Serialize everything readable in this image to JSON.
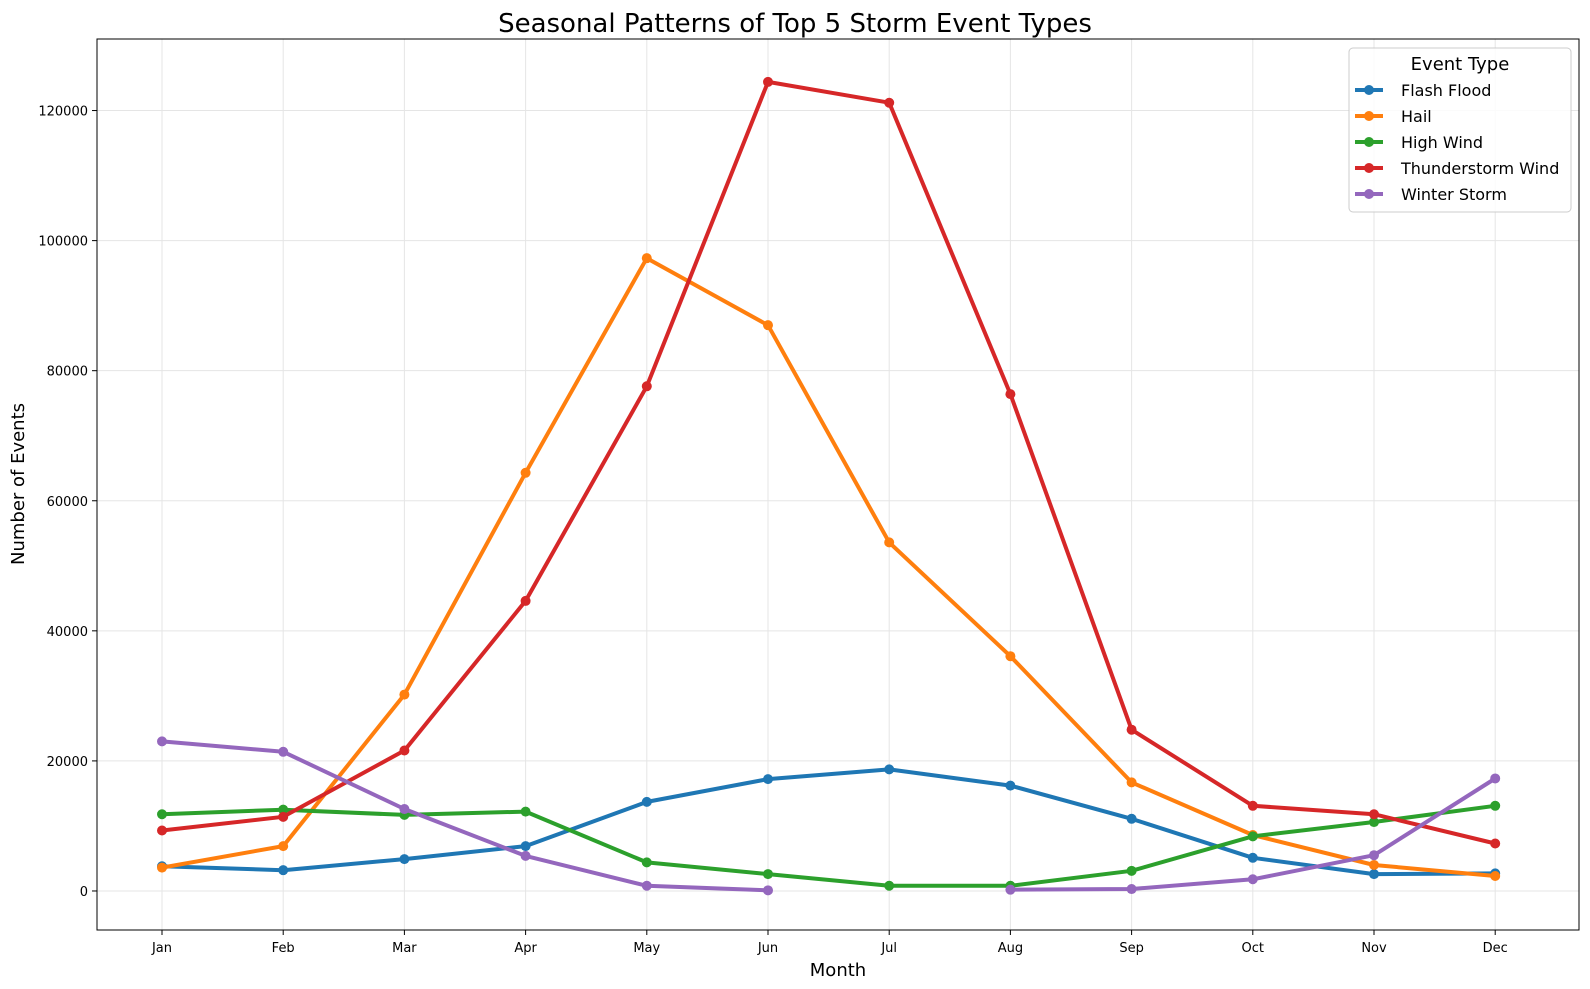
{
  "chart_data": {
    "type": "line",
    "title": "Seasonal Patterns of Top 5 Storm Event Types",
    "xlabel": "Month",
    "ylabel": "Number of Events",
    "categories": [
      "Jan",
      "Feb",
      "Mar",
      "Apr",
      "May",
      "Jun",
      "Jul",
      "Aug",
      "Sep",
      "Oct",
      "Nov",
      "Dec"
    ],
    "ylim": [
      -6000,
      131000
    ],
    "yticks": [
      0,
      20000,
      40000,
      60000,
      80000,
      100000,
      120000
    ],
    "grid": true,
    "legend": {
      "title": "Event Type",
      "placement": "top-right"
    },
    "series": [
      {
        "name": "Flash Flood",
        "color": "#1f77b4",
        "values": [
          3800,
          3200,
          4900,
          6900,
          13700,
          17200,
          18700,
          16200,
          11100,
          5100,
          2600,
          2700
        ]
      },
      {
        "name": "Hail",
        "color": "#ff7f0e",
        "values": [
          3600,
          6900,
          30200,
          64300,
          97300,
          87000,
          53600,
          36100,
          16700,
          8600,
          4000,
          2300
        ]
      },
      {
        "name": "High Wind",
        "color": "#2ca02c",
        "values": [
          11800,
          12500,
          11700,
          12200,
          4400,
          2600,
          800,
          800,
          3100,
          8400,
          10600,
          13100
        ]
      },
      {
        "name": "Thunderstorm Wind",
        "color": "#d62728",
        "values": [
          9300,
          11400,
          21600,
          44600,
          77600,
          124400,
          121200,
          76400,
          24800,
          13100,
          11800,
          7300
        ]
      },
      {
        "name": "Winter Storm",
        "color": "#9467bd",
        "values": [
          23000,
          21400,
          12600,
          5400,
          800,
          100,
          null,
          200,
          300,
          1800,
          5500,
          17300
        ]
      }
    ]
  }
}
